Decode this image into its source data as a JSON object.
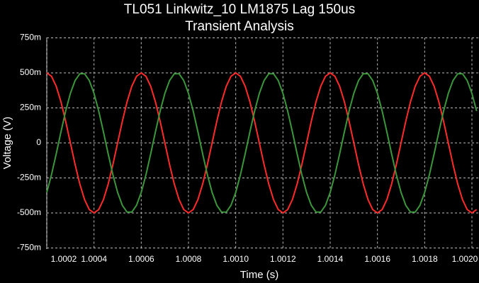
{
  "chart_data": {
    "type": "line",
    "title": "TL051 Linkwitz_10 LM1875 Lag 150us",
    "subtitle": "Transient Analysis",
    "x_label": "Time (s)",
    "y_label": "Voltage (V)",
    "x": [
      1.0002,
      1.00022,
      1.00024,
      1.00026,
      1.00028,
      1.0003,
      1.00032,
      1.00034,
      1.00036,
      1.00038,
      1.0004,
      1.00042,
      1.00044,
      1.00046,
      1.00048,
      1.0005,
      1.00052,
      1.00054,
      1.00056,
      1.00058,
      1.0006,
      1.00062,
      1.00064,
      1.00066,
      1.00068,
      1.0007,
      1.00072,
      1.00074,
      1.00076,
      1.00078,
      1.0008,
      1.00082,
      1.00084,
      1.00086,
      1.00088,
      1.0009,
      1.00092,
      1.00094,
      1.00096,
      1.00098,
      1.001,
      1.00102,
      1.00104,
      1.00106,
      1.00108,
      1.0011,
      1.00112,
      1.00114,
      1.00116,
      1.00118,
      1.0012,
      1.00122,
      1.00124,
      1.00126,
      1.00128,
      1.0013,
      1.00132,
      1.00134,
      1.00136,
      1.00138,
      1.0014,
      1.00142,
      1.00144,
      1.00146,
      1.00148,
      1.0015,
      1.00152,
      1.00154,
      1.00156,
      1.00158,
      1.0016,
      1.00162,
      1.00164,
      1.00166,
      1.00168,
      1.0017,
      1.00172,
      1.00174,
      1.00176,
      1.00178,
      1.0018,
      1.00182,
      1.00184,
      1.00186,
      1.00188,
      1.0019,
      1.00192,
      1.00194,
      1.00196,
      1.00198,
      1.002,
      1.00202
    ],
    "series": [
      {
        "color": "#ff2a2a",
        "values": [
          0.5,
          0.4755,
          0.4045,
          0.2939,
          0.1545,
          0,
          -0.1545,
          -0.2939,
          -0.4045,
          -0.4755,
          -0.5,
          -0.4755,
          -0.4045,
          -0.2939,
          -0.1545,
          0,
          0.1545,
          0.2939,
          0.4045,
          0.4755,
          0.5,
          0.4755,
          0.4045,
          0.2939,
          0.1545,
          0,
          -0.1545,
          -0.2939,
          -0.4045,
          -0.4755,
          -0.5,
          -0.4755,
          -0.4045,
          -0.2939,
          -0.1545,
          0,
          0.1545,
          0.2939,
          0.4045,
          0.4755,
          0.5,
          0.4755,
          0.4045,
          0.2939,
          0.1545,
          0,
          -0.1545,
          -0.2939,
          -0.4045,
          -0.4755,
          -0.5,
          -0.4755,
          -0.4045,
          -0.2939,
          -0.1545,
          0,
          0.1545,
          0.2939,
          0.4045,
          0.4755,
          0.5,
          0.4755,
          0.4045,
          0.2939,
          0.1545,
          0,
          -0.1545,
          -0.2939,
          -0.4045,
          -0.4755,
          -0.5,
          -0.4755,
          -0.4045,
          -0.2939,
          -0.1545,
          0,
          0.1545,
          0.2939,
          0.4045,
          0.4755,
          0.5,
          0.4755,
          0.4045,
          0.2939,
          0.1545,
          0,
          -0.1545,
          -0.2939,
          -0.4045,
          -0.4755,
          -0.5,
          -0.4755
        ]
      },
      {
        "color": "#3c963c",
        "values": [
          -0.3536,
          -0.227,
          -0.0782,
          0.0782,
          0.227,
          0.3536,
          0.4455,
          0.4938,
          0.4938,
          0.4455,
          0.3536,
          0.227,
          0.0782,
          -0.0782,
          -0.227,
          -0.3536,
          -0.4455,
          -0.4938,
          -0.4938,
          -0.4455,
          -0.3536,
          -0.227,
          -0.0782,
          0.0782,
          0.227,
          0.3536,
          0.4455,
          0.4938,
          0.4938,
          0.4455,
          0.3536,
          0.227,
          0.0782,
          -0.0782,
          -0.227,
          -0.3536,
          -0.4455,
          -0.4938,
          -0.4938,
          -0.4455,
          -0.3536,
          -0.227,
          -0.0782,
          0.0782,
          0.227,
          0.3536,
          0.4455,
          0.4938,
          0.4938,
          0.4455,
          0.3536,
          0.227,
          0.0782,
          -0.0782,
          -0.227,
          -0.3536,
          -0.4455,
          -0.4938,
          -0.4938,
          -0.4455,
          -0.3536,
          -0.227,
          -0.0782,
          0.0782,
          0.227,
          0.3536,
          0.4455,
          0.4938,
          0.4938,
          0.4455,
          0.3536,
          0.227,
          0.0782,
          -0.0782,
          -0.227,
          -0.3536,
          -0.4455,
          -0.4938,
          -0.4938,
          -0.4455,
          -0.3536,
          -0.227,
          -0.0782,
          0.0782,
          0.227,
          0.3536,
          0.4455,
          0.4938,
          0.4938,
          0.4455,
          0.3536,
          0.227
        ]
      }
    ],
    "xlim": [
      1.0002,
      1.00203
    ],
    "ylim": [
      -0.75,
      0.75
    ],
    "xticks": [
      1.0002,
      1.0004,
      1.0006,
      1.0008,
      {
        "value": 1.001,
        "label": "1.0010"
      },
      1.0012,
      1.0014,
      1.0016,
      1.0018,
      {
        "value": 1.002,
        "label": "1.0020"
      }
    ],
    "yticks": [
      {
        "value": -0.75,
        "label": "-750m"
      },
      {
        "value": -0.5,
        "label": "-500m"
      },
      {
        "value": -0.25,
        "label": "-250m"
      },
      0,
      {
        "value": 0.25,
        "label": "250m"
      },
      {
        "value": 0.5,
        "label": "500m"
      },
      {
        "value": 0.75,
        "label": "750m"
      }
    ],
    "grid": true
  }
}
